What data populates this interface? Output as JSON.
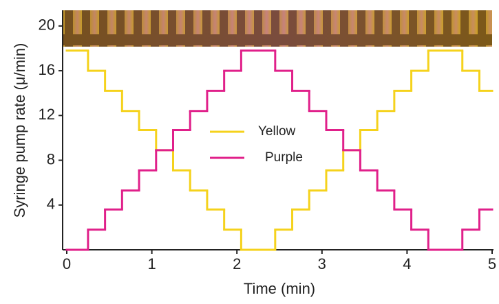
{
  "chart_data": {
    "type": "step",
    "xlabel": "Time (min)",
    "ylabel": "Syringe pump rate (μ/min)",
    "x": [
      0,
      0.25,
      0.45,
      0.65,
      0.85,
      1.05,
      1.25,
      1.45,
      1.65,
      1.85,
      2.05,
      2.45,
      2.65,
      2.85,
      3.05,
      3.25,
      3.45,
      3.65,
      3.85,
      4.05,
      4.25,
      4.65,
      4.85
    ],
    "series": [
      {
        "name": "Yellow",
        "color": "#f5d21c",
        "values": [
          17.8,
          16,
          14.2,
          12.4,
          10.7,
          8.9,
          7.1,
          5.3,
          3.6,
          1.8,
          0,
          1.8,
          3.6,
          5.3,
          7.1,
          8.9,
          10.7,
          12.4,
          14.2,
          16,
          17.8,
          16,
          14.2
        ]
      },
      {
        "name": "Purple",
        "color": "#e0208a",
        "values": [
          0,
          1.8,
          3.6,
          5.3,
          7.1,
          8.9,
          10.7,
          12.4,
          14.2,
          16,
          17.8,
          16,
          14.2,
          12.4,
          10.7,
          8.9,
          7.1,
          5.3,
          3.6,
          1.8,
          0,
          1.8,
          3.6
        ]
      }
    ],
    "xlim": [
      0,
      5
    ],
    "ylim": [
      0,
      21.4
    ],
    "xticks": [
      0,
      1,
      2,
      3,
      4,
      5
    ],
    "yticks": [
      4,
      8,
      12,
      16,
      20
    ]
  }
}
